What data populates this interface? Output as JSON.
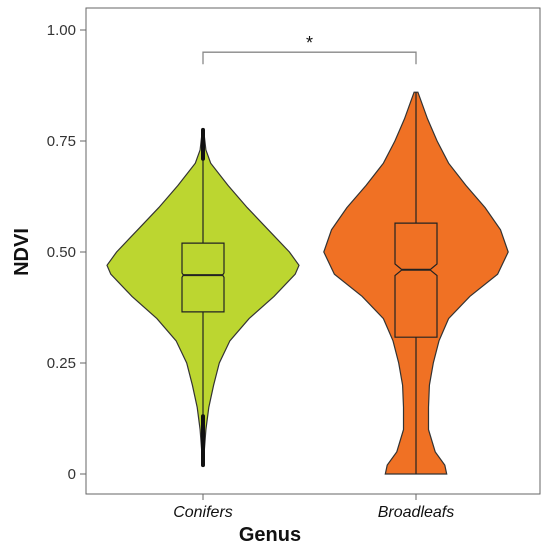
{
  "chart_data": {
    "type": "violin",
    "xlabel": "Genus",
    "ylabel": "NDVI",
    "ylim": [
      0,
      1.0
    ],
    "yticks": [
      {
        "value": 0,
        "label": "0"
      },
      {
        "value": 0.25,
        "label": "0.25"
      },
      {
        "value": 0.5,
        "label": "0.50"
      },
      {
        "value": 0.75,
        "label": "0.75"
      },
      {
        "value": 1.0,
        "label": "1.00"
      }
    ],
    "grid": false,
    "significance": {
      "label": "*",
      "between": [
        "Conifers",
        "Broadleafs"
      ],
      "y": 0.95
    },
    "categories": [
      "Conifers",
      "Broadleafs"
    ],
    "series": [
      {
        "category": "Conifers",
        "color": "#bcd630",
        "min": 0.02,
        "max": 0.775,
        "whisker_low": 0.13,
        "whisker_high": 0.71,
        "q1": 0.365,
        "median": 0.448,
        "q3": 0.52,
        "notch_low": 0.443,
        "notch_high": 0.453,
        "outlier_range_low": [
          0.02,
          0.13
        ],
        "outlier_range_high": [
          0.71,
          0.775
        ],
        "density": [
          [
            0.02,
            0.004
          ],
          [
            0.05,
            0.012
          ],
          [
            0.1,
            0.03
          ],
          [
            0.15,
            0.06
          ],
          [
            0.2,
            0.11
          ],
          [
            0.25,
            0.17
          ],
          [
            0.3,
            0.28
          ],
          [
            0.35,
            0.48
          ],
          [
            0.4,
            0.74
          ],
          [
            0.45,
            0.96
          ],
          [
            0.47,
            1.0
          ],
          [
            0.5,
            0.9
          ],
          [
            0.55,
            0.68
          ],
          [
            0.6,
            0.46
          ],
          [
            0.65,
            0.26
          ],
          [
            0.7,
            0.08
          ],
          [
            0.73,
            0.03
          ],
          [
            0.775,
            0.006
          ]
        ]
      },
      {
        "category": "Broadleafs",
        "color": "#f07124",
        "min": 0.0,
        "max": 0.86,
        "whisker_low": 0.0,
        "whisker_high": 0.86,
        "q1": 0.308,
        "median": 0.46,
        "q3": 0.565,
        "notch_low": 0.447,
        "notch_high": 0.473,
        "density": [
          [
            0.0,
            0.32
          ],
          [
            0.02,
            0.3
          ],
          [
            0.05,
            0.2
          ],
          [
            0.1,
            0.13
          ],
          [
            0.15,
            0.13
          ],
          [
            0.2,
            0.14
          ],
          [
            0.25,
            0.18
          ],
          [
            0.3,
            0.24
          ],
          [
            0.35,
            0.34
          ],
          [
            0.4,
            0.56
          ],
          [
            0.45,
            0.85
          ],
          [
            0.5,
            0.96
          ],
          [
            0.55,
            0.88
          ],
          [
            0.6,
            0.72
          ],
          [
            0.65,
            0.52
          ],
          [
            0.7,
            0.34
          ],
          [
            0.75,
            0.22
          ],
          [
            0.8,
            0.12
          ],
          [
            0.86,
            0.02
          ]
        ]
      }
    ]
  },
  "colors": {
    "axis": "#666666",
    "outline": "#333333",
    "box": "#222222"
  }
}
